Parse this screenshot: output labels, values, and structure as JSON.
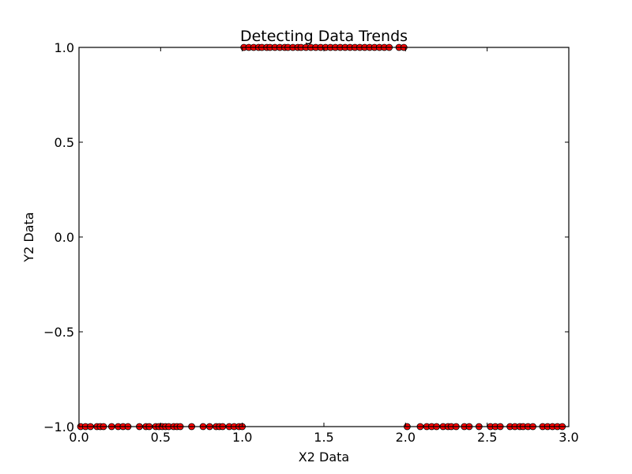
{
  "chart_data": {
    "type": "scatter",
    "title": "Detecting Data Trends",
    "xlabel": "X2 Data",
    "ylabel": "Y2 Data",
    "xlim": [
      0,
      3
    ],
    "ylim": [
      -1,
      1
    ],
    "x_ticks": [
      0.0,
      0.5,
      1.0,
      1.5,
      2.0,
      2.5,
      3.0
    ],
    "x_tick_labels": [
      "0.0",
      "0.5",
      "1.0",
      "1.5",
      "2.0",
      "2.5",
      "3.0"
    ],
    "y_ticks": [
      -1.0,
      -0.5,
      0.0,
      0.5,
      1.0
    ],
    "y_tick_labels": [
      "−1.0",
      "−0.5",
      "0.0",
      "0.5",
      "1.0"
    ],
    "grid": false,
    "marker_color": "#ff0000",
    "marker_edge_color": "#000000",
    "series": [
      {
        "x": [
          0.01,
          0.04,
          0.07,
          0.11,
          0.13,
          0.15,
          0.2,
          0.24,
          0.27,
          0.3,
          0.37,
          0.41,
          0.43,
          0.47,
          0.49,
          0.51,
          0.53,
          0.55,
          0.58,
          0.6,
          0.62,
          0.69,
          0.76,
          0.8,
          0.84,
          0.86,
          0.88,
          0.92,
          0.95,
          0.98,
          1.0,
          1.01,
          1.04,
          1.07,
          1.1,
          1.12,
          1.15,
          1.17,
          1.2,
          1.23,
          1.26,
          1.28,
          1.31,
          1.34,
          1.36,
          1.39,
          1.42,
          1.45,
          1.48,
          1.51,
          1.54,
          1.57,
          1.6,
          1.63,
          1.66,
          1.69,
          1.72,
          1.75,
          1.78,
          1.81,
          1.84,
          1.87,
          1.9,
          1.96,
          1.99,
          2.01,
          2.09,
          2.13,
          2.16,
          2.19,
          2.23,
          2.26,
          2.28,
          2.31,
          2.36,
          2.39,
          2.45,
          2.52,
          2.55,
          2.58,
          2.64,
          2.67,
          2.7,
          2.72,
          2.75,
          2.78,
          2.84,
          2.87,
          2.9,
          2.93,
          2.96
        ],
        "y": [
          -1,
          -1,
          -1,
          -1,
          -1,
          -1,
          -1,
          -1,
          -1,
          -1,
          -1,
          -1,
          -1,
          -1,
          -1,
          -1,
          -1,
          -1,
          -1,
          -1,
          -1,
          -1,
          -1,
          -1,
          -1,
          -1,
          -1,
          -1,
          -1,
          -1,
          -1,
          1,
          1,
          1,
          1,
          1,
          1,
          1,
          1,
          1,
          1,
          1,
          1,
          1,
          1,
          1,
          1,
          1,
          1,
          1,
          1,
          1,
          1,
          1,
          1,
          1,
          1,
          1,
          1,
          1,
          1,
          1,
          1,
          1,
          1,
          -1,
          -1,
          -1,
          -1,
          -1,
          -1,
          -1,
          -1,
          -1,
          -1,
          -1,
          -1,
          -1,
          -1,
          -1,
          -1,
          -1,
          -1,
          -1,
          -1,
          -1,
          -1,
          -1,
          -1,
          -1,
          -1
        ]
      }
    ]
  }
}
